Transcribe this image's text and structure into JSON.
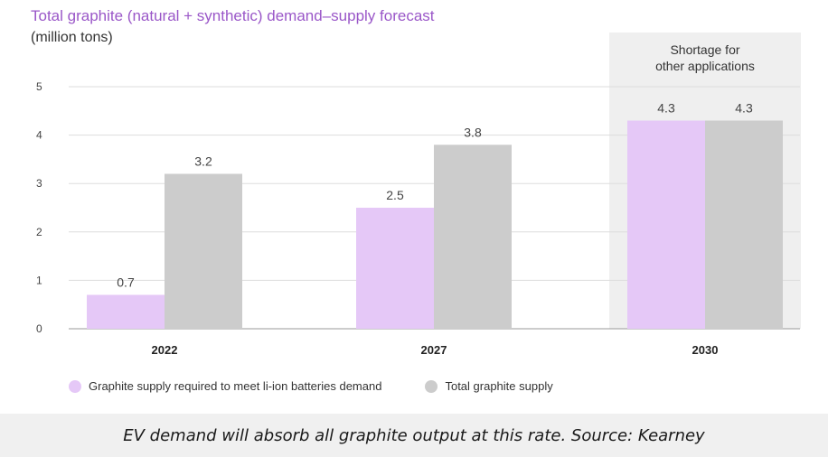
{
  "chart_data": {
    "type": "bar",
    "title": "Total graphite (natural + synthetic) demand–supply forecast",
    "ylabel": "(million tons)",
    "xlabel": "",
    "categories": [
      "2022",
      "2027",
      "2030"
    ],
    "series": [
      {
        "name": "Graphite supply required to meet li-ion batteries demand",
        "values": [
          0.7,
          2.5,
          4.3
        ],
        "labels": [
          "0.7",
          "2.5",
          "4.3"
        ],
        "color": "#e5c8f7"
      },
      {
        "name": "Total graphite supply",
        "values": [
          3.2,
          3.8,
          4.3
        ],
        "labels": [
          "3.2",
          "3.8",
          "4.3"
        ],
        "color": "#cccccc"
      }
    ],
    "ylim": [
      0,
      5
    ],
    "yticks": [
      "0",
      "1",
      "2",
      "3",
      "4",
      "5"
    ],
    "grid": true,
    "annotation": {
      "category": "2030",
      "text_line1": "Shortage for",
      "text_line2": "other applications",
      "color": "#efefef"
    },
    "legend_position": "bottom-left"
  },
  "caption": "EV demand will absorb all graphite output at this rate. Source: Kearney"
}
